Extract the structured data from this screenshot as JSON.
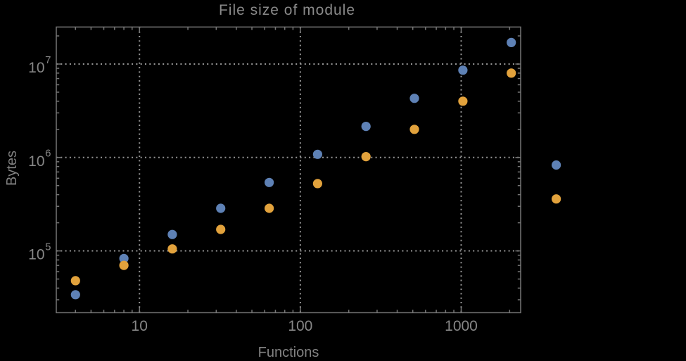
{
  "title": "File size of module",
  "xlabel": "Functions",
  "ylabel": "Bytes",
  "colors": {
    "background": "#000000",
    "frame": "#767676",
    "grid": "#969696",
    "title_text": "#8a8a8a",
    "label_text": "#828282",
    "tick_text": "#868686",
    "series1": "#5e81b5",
    "series2": "#e2a23c"
  },
  "chart_data": {
    "type": "scatter",
    "x_axis": {
      "scale": "log",
      "major_ticks": [
        10,
        100,
        1000
      ],
      "major_labels": [
        "10",
        "100",
        "1000"
      ]
    },
    "y_axis": {
      "scale": "log",
      "major_ticks": [
        100000,
        1000000,
        10000000
      ],
      "major_label_base": "10",
      "major_label_exponents": [
        "5",
        "6",
        "7"
      ]
    },
    "xlim": [
      3.04,
      2342
    ],
    "ylim": [
      21800,
      24900000
    ],
    "grid": "dotted",
    "title": "File size of module",
    "xlabel": "Functions",
    "ylabel": "Bytes",
    "series": [
      {
        "name": "series-1-blue",
        "color": "#5e81b5",
        "points": [
          [
            4,
            34000
          ],
          [
            8,
            83000
          ],
          [
            16,
            150000
          ],
          [
            32,
            286000
          ],
          [
            64,
            540000
          ],
          [
            128,
            1080000
          ],
          [
            256,
            2150000
          ],
          [
            512,
            4300000
          ],
          [
            1024,
            8600000
          ],
          [
            2048,
            17000000
          ],
          [
            3900,
            830000
          ]
        ]
      },
      {
        "name": "series-2-orange",
        "color": "#e2a23c",
        "points": [
          [
            4,
            48000
          ],
          [
            8,
            70000
          ],
          [
            16,
            105000
          ],
          [
            32,
            170000
          ],
          [
            64,
            286000
          ],
          [
            128,
            525000
          ],
          [
            256,
            1020000
          ],
          [
            512,
            2000000
          ],
          [
            1024,
            4000000
          ],
          [
            2048,
            8000000
          ],
          [
            3900,
            360000
          ]
        ]
      }
    ]
  }
}
